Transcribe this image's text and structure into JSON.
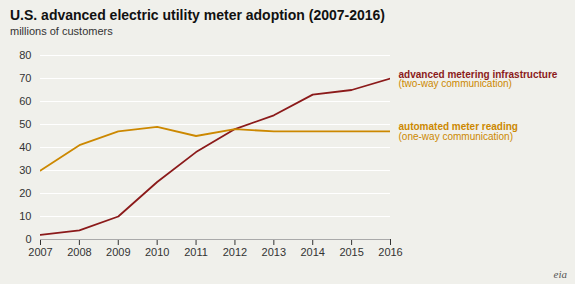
{
  "chart_data": {
    "type": "line",
    "title": "U.S. advanced electric utility meter adoption (2007-2016)",
    "subtitle": "millions of customers",
    "x": [
      2007,
      2008,
      2009,
      2010,
      2011,
      2012,
      2013,
      2014,
      2015,
      2016
    ],
    "series": [
      {
        "name": "advanced metering infrastructure",
        "color": "#8B1A1A",
        "values": [
          2,
          4,
          10,
          25,
          38,
          48,
          54,
          63,
          65,
          70
        ]
      },
      {
        "name": "automated meter reading",
        "color": "#CC8800",
        "values": [
          30,
          41,
          47,
          49,
          45,
          48,
          47,
          47,
          47,
          47
        ]
      }
    ],
    "annotations": [
      {
        "text": "(two-way communication)",
        "color": "#CC8800"
      },
      {
        "text": "(one-way communication)",
        "color": "#CC8800"
      },
      {
        "text": "eia"
      }
    ],
    "xlim": [
      2007,
      2016
    ],
    "xticks": [
      2007,
      2008,
      2009,
      2010,
      2011,
      2012,
      2013,
      2014,
      2015,
      2016
    ],
    "ylim": [
      0,
      80
    ],
    "yticks": [
      0,
      10,
      20,
      30,
      40,
      50,
      60,
      70,
      80
    ],
    "grid": true,
    "color": "#f0f0eb"
  }
}
